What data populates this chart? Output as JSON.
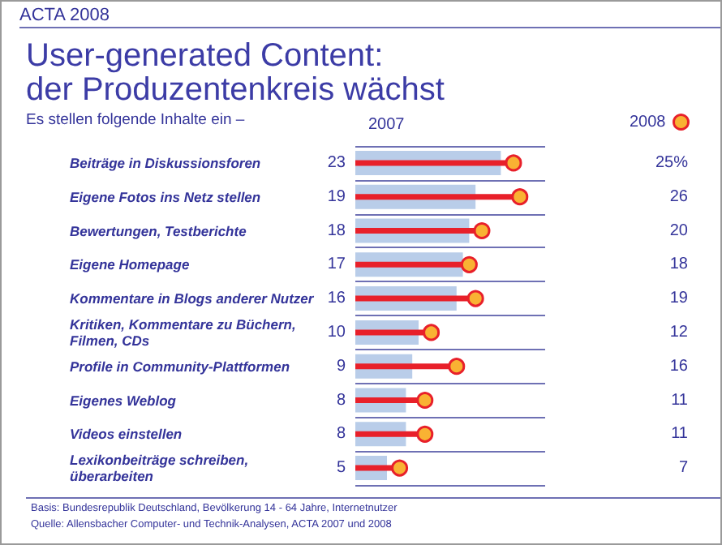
{
  "chart_data": {
    "type": "bar",
    "orientation": "horizontal",
    "title": "User-generated Content:\nder Produzentenkreis wächst",
    "subtitle": "Es stellen folgende Inhalte ein –",
    "categories": [
      "Beiträge in Diskussionsforen",
      "Eigene Fotos ins Netz stellen",
      "Bewertungen, Testberichte",
      "Eigene Homepage",
      "Kommentare in Blogs anderer Nutzer",
      "Kritiken, Kommentare zu Büchern, Filmen, CDs",
      "Profile in Community-Plattformen",
      "Eigenes Weblog",
      "Videos einstellen",
      "Lexikonbeiträge schreiben, überarbeiten"
    ],
    "series": [
      {
        "name": "2007",
        "color": "#b9cde9",
        "values": [
          23,
          19,
          18,
          17,
          16,
          10,
          9,
          8,
          8,
          5
        ],
        "value_labels": [
          "23",
          "19",
          "18",
          "17",
          "16",
          "10",
          "9",
          "8",
          "8",
          "5"
        ]
      },
      {
        "name": "2008",
        "type": "lollipop",
        "color": "#e8202a",
        "values": [
          25,
          26,
          20,
          18,
          19,
          12,
          16,
          11,
          11,
          7
        ],
        "value_labels": [
          "25%",
          "26",
          "20",
          "18",
          "19",
          "12",
          "16",
          "11",
          "11",
          "7"
        ]
      }
    ],
    "marker": "circle",
    "grid": "y",
    "legend": "top",
    "annotations": [
      "ACTA 2008",
      "Basis: Bundesrepublik Deutschland, Bevölkerung 14 - 64 Jahre, Internetnutzer",
      "Quelle: Allensbacher Computer- und Technik-Analysen, ACTA 2007 und 2008"
    ]
  }
}
